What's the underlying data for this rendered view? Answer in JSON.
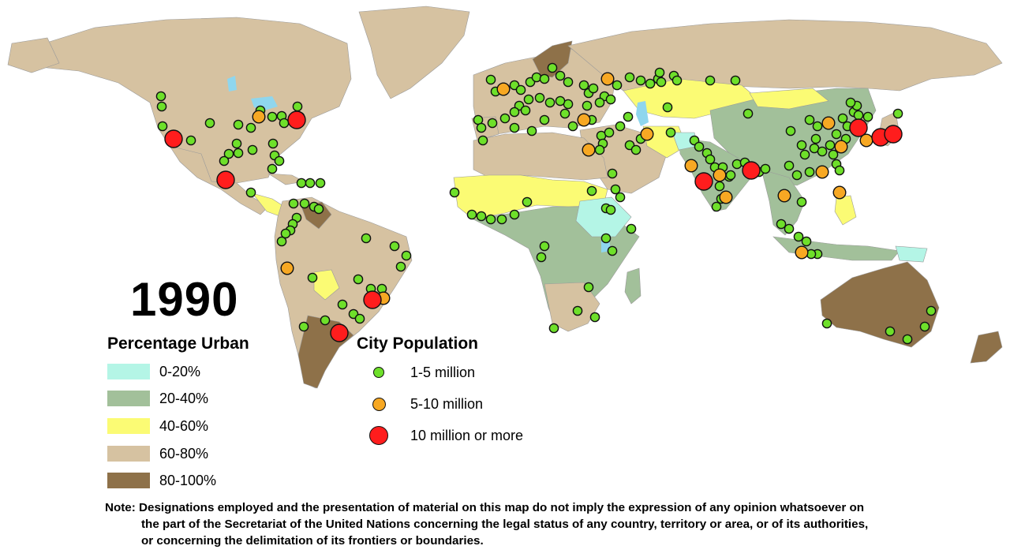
{
  "year": "1990",
  "legend_urban": {
    "title": "Percentage Urban",
    "items": [
      {
        "label": "0-20%",
        "color": "#b4f5e6"
      },
      {
        "label": "20-40%",
        "color": "#a2c09a"
      },
      {
        "label": "40-60%",
        "color": "#fbfb74"
      },
      {
        "label": "60-80%",
        "color": "#d6c2a1"
      },
      {
        "label": "80-100%",
        "color": "#8e7149"
      }
    ]
  },
  "legend_population": {
    "title": "City Population",
    "items": [
      {
        "label": "1-5 million",
        "color": "#6ee02a"
      },
      {
        "label": "5-10 million",
        "color": "#f7a823"
      },
      {
        "label": "10 million or more",
        "color": "#ff1d1d"
      }
    ]
  },
  "note": {
    "line1": "Note: Designations employed and the presentation of material on this map do not imply the expression of any opinion whatsoever on",
    "line2": "the part of the Secretariat of the United Nations concerning the legal status of any country, territory or area, or of its authorities,",
    "line3": "or concerning the delimitation of its frontiers or boundaries."
  },
  "colors": {
    "water": "#8fd6ee",
    "map_background": "#ffffff"
  }
}
